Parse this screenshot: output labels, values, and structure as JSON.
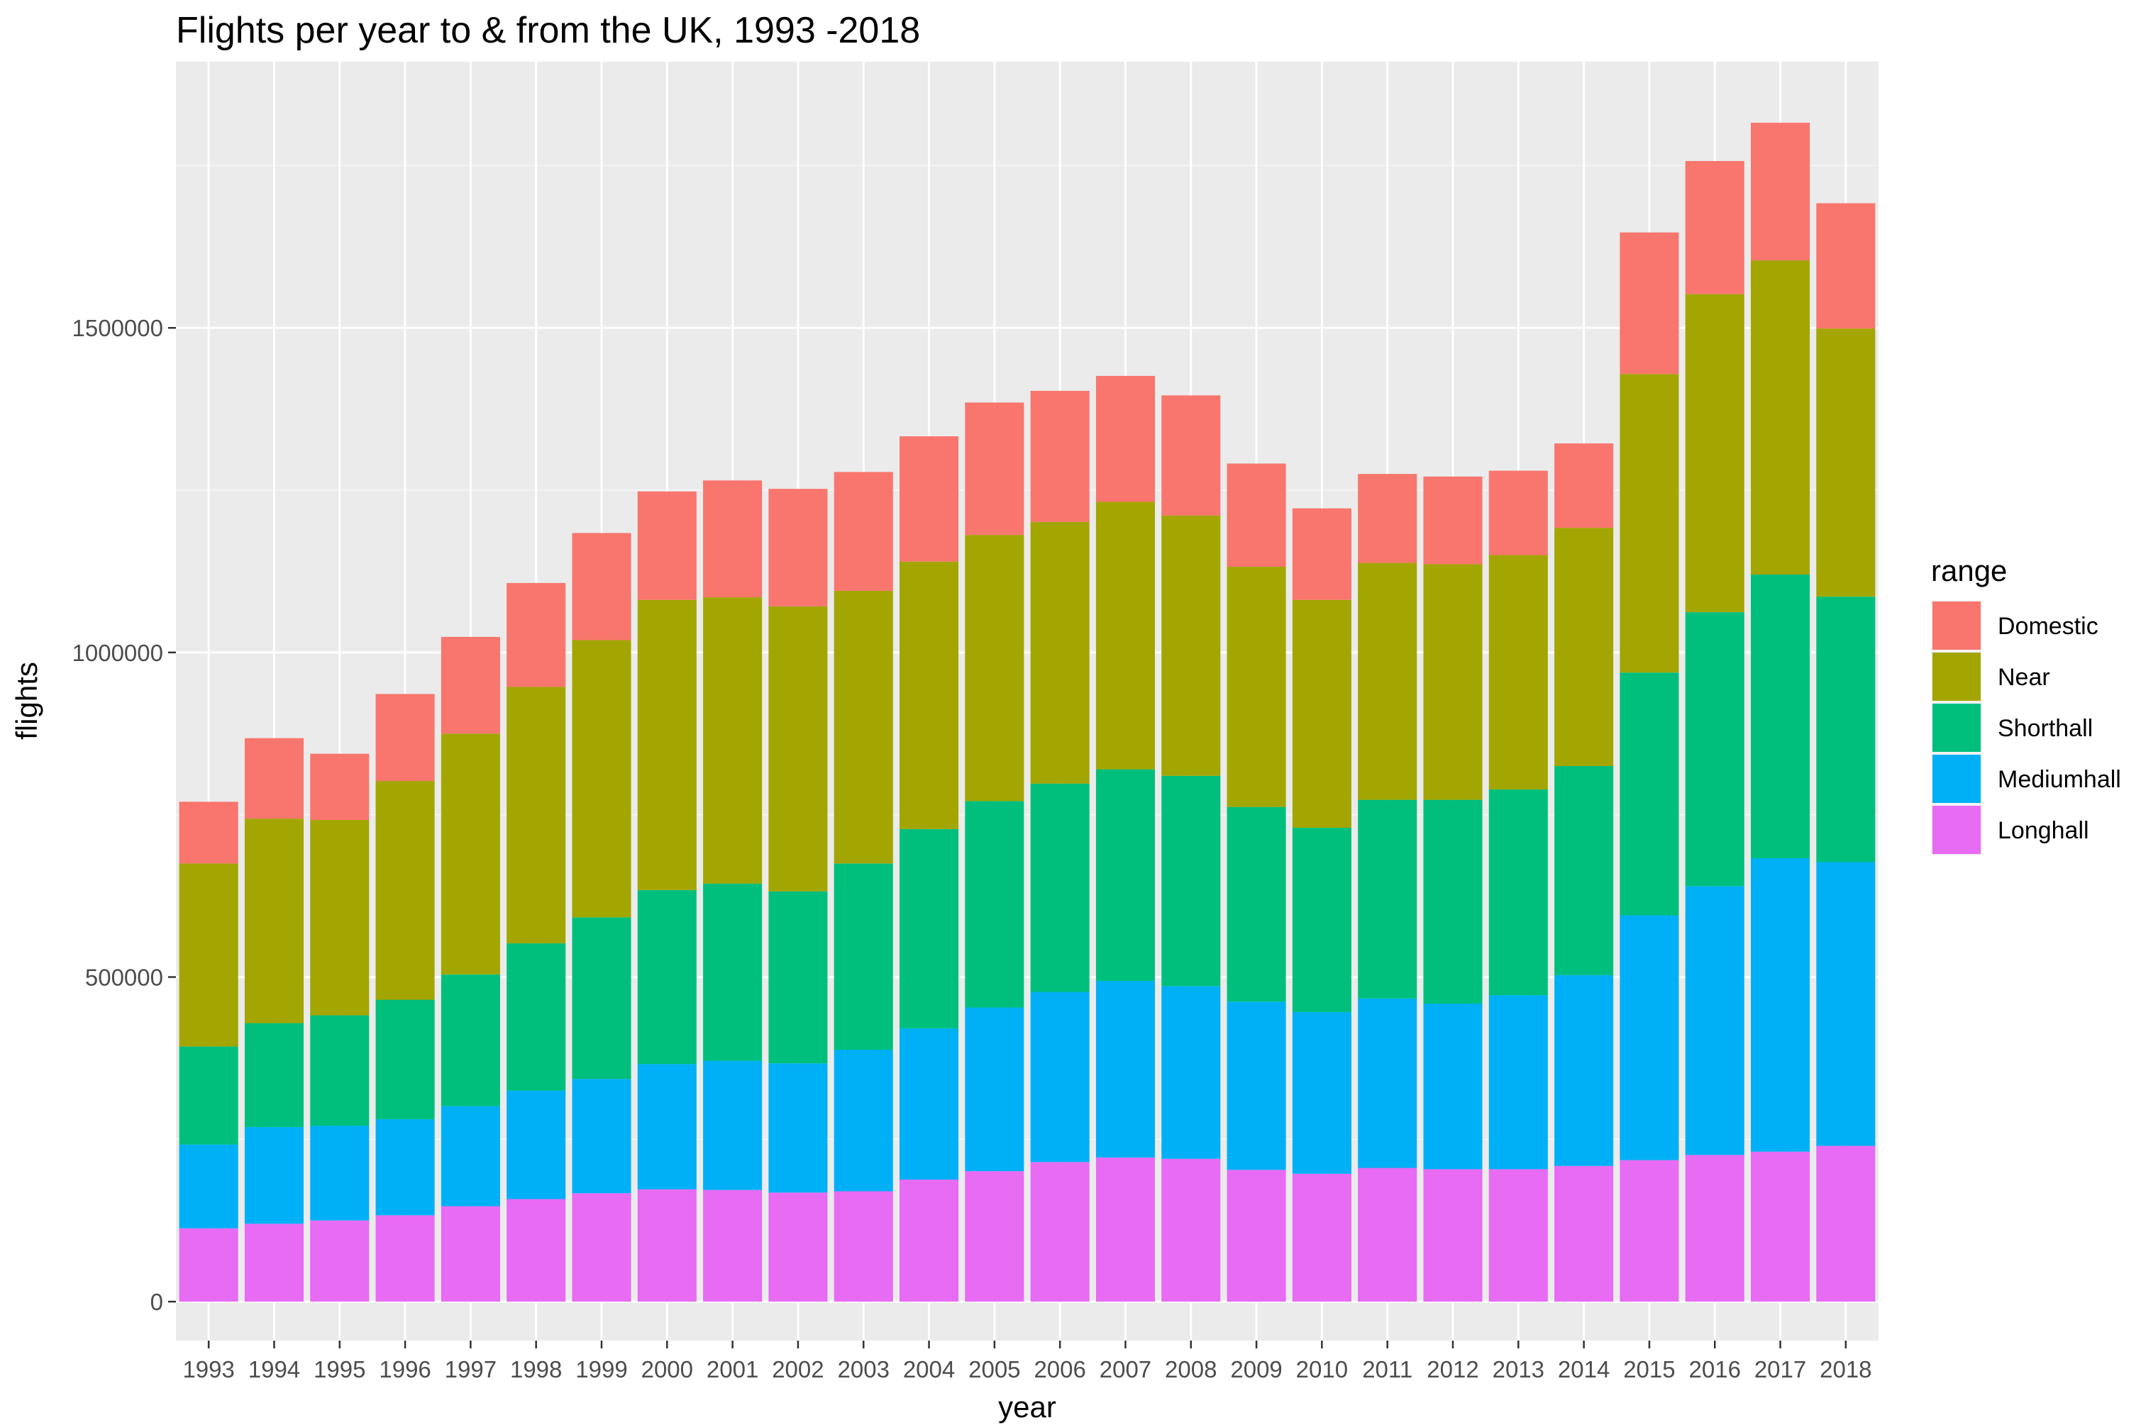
{
  "chart_data": {
    "type": "bar",
    "stacked": true,
    "title": "Flights per year to & from the UK, 1993 -2018",
    "xlabel": "year",
    "ylabel": "flights",
    "ylim": [
      -60000,
      1910000
    ],
    "yticks": [
      0,
      500000,
      1000000,
      1500000
    ],
    "ytick_labels": [
      "0",
      "500000",
      "1000000",
      "1500000"
    ],
    "grid": true,
    "legend_title": "range",
    "legend_position": "right",
    "categories": [
      "1993",
      "1994",
      "1995",
      "1996",
      "1997",
      "1998",
      "1999",
      "2000",
      "2001",
      "2002",
      "2003",
      "2004",
      "2005",
      "2006",
      "2007",
      "2008",
      "2009",
      "2010",
      "2011",
      "2012",
      "2013",
      "2014",
      "2015",
      "2016",
      "2017",
      "2018"
    ],
    "series": [
      {
        "name": "Longhall",
        "color": "#E76BF3",
        "values": [
          113000,
          120000,
          125000,
          133000,
          147000,
          158000,
          167000,
          173000,
          172000,
          168000,
          170000,
          188000,
          201000,
          215000,
          222000,
          220000,
          203000,
          197000,
          206000,
          204000,
          204000,
          209000,
          218000,
          226000,
          231000,
          240000
        ]
      },
      {
        "name": "Mediumhall",
        "color": "#00B0F6",
        "values": [
          129000,
          149000,
          146000,
          148000,
          154000,
          167000,
          176000,
          193000,
          199000,
          199000,
          218000,
          233000,
          252000,
          262000,
          272000,
          266000,
          259000,
          249000,
          261000,
          255000,
          268000,
          294000,
          377000,
          414000,
          452000,
          437000
        ]
      },
      {
        "name": "Shorthall",
        "color": "#00BF7D",
        "values": [
          151000,
          160000,
          170000,
          184000,
          203000,
          227000,
          249000,
          268000,
          273000,
          265000,
          287000,
          307000,
          318000,
          321000,
          326000,
          324000,
          300000,
          284000,
          306000,
          314000,
          317000,
          322000,
          374000,
          422000,
          437000,
          409000
        ]
      },
      {
        "name": "Near",
        "color": "#A3A500",
        "values": [
          282000,
          315000,
          301000,
          337000,
          371000,
          395000,
          427000,
          447000,
          441000,
          439000,
          420000,
          412000,
          410000,
          403000,
          412000,
          401000,
          370000,
          351000,
          365000,
          363000,
          361000,
          367000,
          460000,
          490000,
          484000,
          413000
        ]
      },
      {
        "name": "Domestic",
        "color": "#F8766D",
        "values": [
          95000,
          124000,
          102000,
          134000,
          149000,
          160000,
          165000,
          167000,
          180000,
          181000,
          183000,
          193000,
          204000,
          202000,
          194000,
          185000,
          159000,
          141000,
          137000,
          135000,
          130000,
          130000,
          218000,
          205000,
          212000,
          193000
        ]
      }
    ],
    "legend_order": [
      "Domestic",
      "Near",
      "Shorthall",
      "Mediumhall",
      "Longhall"
    ]
  }
}
